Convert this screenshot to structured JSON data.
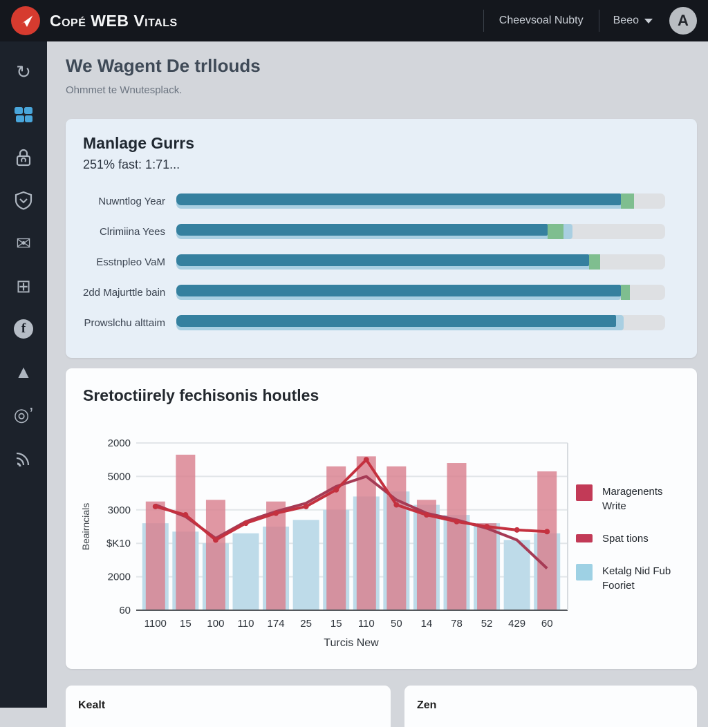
{
  "header": {
    "brand": "Copé WEB Vitals",
    "nav_item": "Cheevsoal Nubty",
    "nav_dropdown": "Beeo",
    "avatar_letter": "A"
  },
  "sidebar": {
    "icons": [
      "history",
      "users",
      "lock",
      "shield",
      "mail",
      "grid",
      "facebook",
      "mountain",
      "target",
      "rss"
    ],
    "active_icon": "users"
  },
  "page": {
    "title": "We Wagent De trllouds",
    "subtitle": "Ohmmet te Wnutesplack."
  },
  "vitals_card": {
    "title": "Manlage Gurrs",
    "subtitle": "251% fast: 1:71..."
  },
  "chart_card": {
    "title": "Sretoctiirely fechisonis houtles",
    "legend": [
      {
        "label": "Maragenents Write",
        "color": "#c23a57",
        "shape": "square"
      },
      {
        "label": "Spat tions",
        "color": "#c23a57",
        "shape": "bar"
      },
      {
        "label": "Ketalg Nid Fub Fooriet",
        "color": "#9ed1e4",
        "shape": "square"
      }
    ]
  },
  "bottom_cards": [
    {
      "title": "Kealt"
    },
    {
      "title": "Zen"
    }
  ],
  "chart_data": [
    {
      "type": "bar",
      "orientation": "horizontal",
      "title": "Manlage Gurrs",
      "subtitle": "251% fast: 1:71...",
      "categories": [
        "Nuwntlog Year",
        "Clrimiina Yees",
        "Esstnpleo VaM",
        "2dd Majurttle bain",
        "Prowslchu alttaim"
      ],
      "values": [
        91,
        76,
        84.5,
        91,
        90
      ],
      "under_values": [
        92.5,
        81,
        85,
        91,
        91.5
      ],
      "cap_values": [
        2.6,
        3.2,
        2.2,
        1.8,
        0
      ],
      "xlim": [
        0,
        100
      ],
      "bar_color": "#35809f",
      "under_color": "#a9cfe2",
      "cap_color": "#7fbe8f",
      "track_color": "#dee0e3"
    },
    {
      "type": "combo",
      "title": "Sretoctiirely fechisonis houtles",
      "xlabel": "Turcis New",
      "ylabel": "Beairncials",
      "x_ticks": [
        "1100",
        "15",
        "100",
        "110",
        "174",
        "25",
        "15",
        "110",
        "50",
        "14",
        "78",
        "52",
        "429",
        "60"
      ],
      "y_ticks": [
        "2000",
        "5000",
        "3000",
        "$K10",
        "2000",
        "60"
      ],
      "ylim": [
        0,
        100
      ],
      "grid": true,
      "legend_position": "right",
      "series": [
        {
          "name": "Ketalg Nid Fub Fooriet",
          "type": "bar",
          "color": "#bedbe9",
          "values": [
            52,
            47,
            40,
            46,
            50,
            54,
            60,
            68,
            71,
            63,
            57,
            52,
            42,
            46
          ]
        },
        {
          "name": "Maragenents Write",
          "type": "bar",
          "color": "#d9808f",
          "values": [
            65,
            93,
            66,
            0,
            65,
            0,
            86,
            92,
            86,
            66,
            88,
            52,
            0,
            83
          ]
        },
        {
          "name": "Spat tions",
          "type": "line",
          "color": "#a63b55",
          "values": [
            63,
            56,
            43,
            53,
            59,
            64,
            74,
            80,
            66,
            58,
            54,
            49,
            42,
            25
          ]
        },
        {
          "name": "line-red",
          "type": "line",
          "color": "#c4313f",
          "markers": true,
          "values": [
            62,
            57,
            42,
            52,
            58,
            62,
            72,
            90,
            63,
            57,
            53,
            50,
            48,
            47
          ]
        }
      ]
    }
  ],
  "colors": {
    "header_bg": "#14171d",
    "sidebar_bg": "#1c222b",
    "main_bg": "#d3d6db",
    "card1_bg": "#e7eff7",
    "card2_bg": "#fcfdfe",
    "accent_blue": "#49a6db",
    "logo_red": "#d63b2f"
  }
}
